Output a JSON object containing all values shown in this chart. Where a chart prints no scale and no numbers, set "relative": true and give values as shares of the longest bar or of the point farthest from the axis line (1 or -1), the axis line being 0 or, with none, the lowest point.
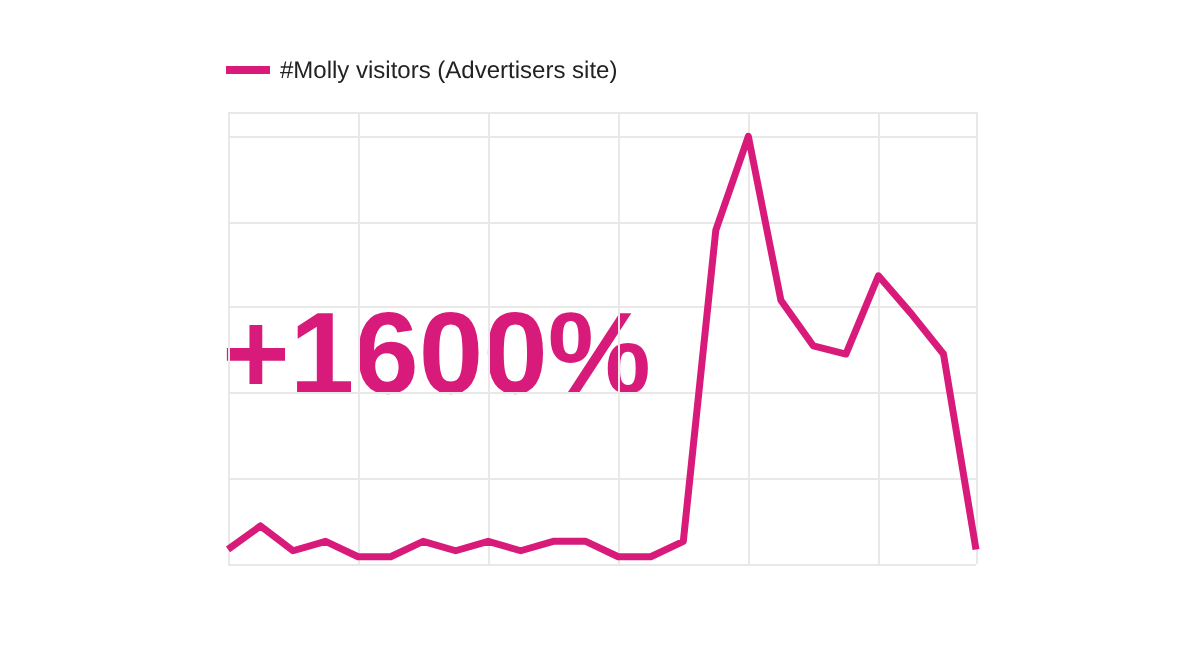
{
  "chart_data": {
    "type": "line",
    "relative": true,
    "categories": [
      null,
      null,
      null,
      null,
      null,
      null,
      null,
      null,
      null,
      null,
      null,
      null,
      null,
      null,
      null,
      null,
      null,
      null,
      null,
      null,
      null,
      null,
      null,
      null
    ],
    "series": [
      {
        "name": "#Molly visitors (Advertisers site)",
        "color": "#d81b7a",
        "values": [
          0.034,
          0.089,
          0.031,
          0.053,
          0.017,
          0.017,
          0.053,
          0.031,
          0.053,
          0.031,
          0.053,
          0.053,
          0.017,
          0.017,
          0.053,
          0.781,
          1,
          0.617,
          0.51,
          0.491,
          0.674,
          0.586,
          0.491,
          0.034
        ]
      }
    ],
    "annotations": [
      "+1600%"
    ],
    "grid": true,
    "legend": "top left",
    "marker": "none",
    "line_style": "solid"
  }
}
